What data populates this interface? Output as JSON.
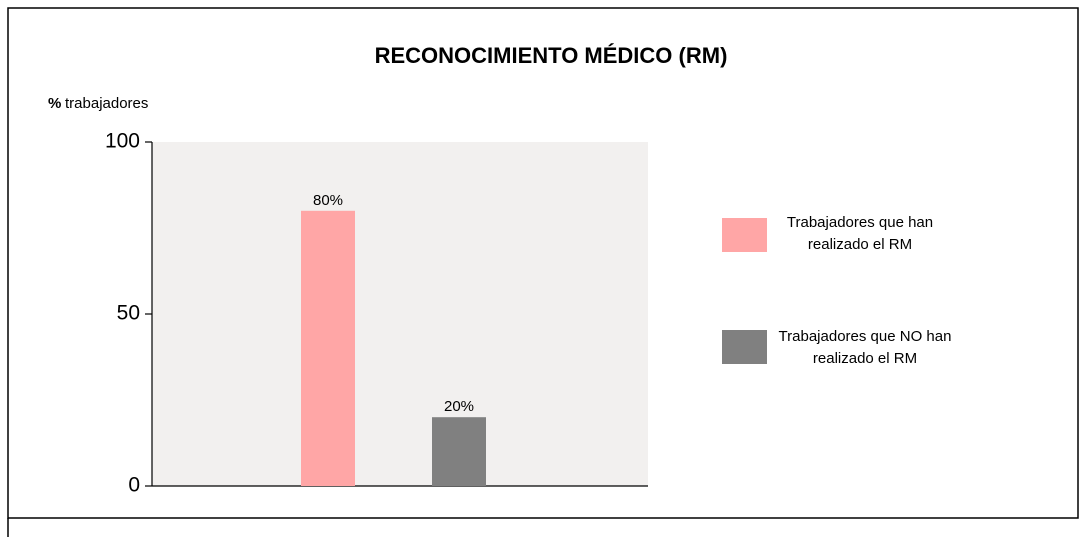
{
  "chart_data": {
    "type": "bar",
    "title": "RECONOCIMIENTO MÉDICO (RM)",
    "y_label_unit": "%",
    "y_label": "trabajadores",
    "categories": [
      null,
      null
    ],
    "series": [
      {
        "name": "Trabajadores que han realizado el RM",
        "color": "#ffa6a6"
      },
      {
        "name": "Trabajadores que NO han realizado el RM",
        "color": "#808080"
      }
    ],
    "values": [
      80,
      20
    ],
    "value_labels": [
      "80%",
      "20%"
    ],
    "ylim": [
      0,
      100
    ],
    "yticks": [
      0,
      50,
      100
    ],
    "plot_background": "#f2f0ef",
    "legend": "right"
  }
}
